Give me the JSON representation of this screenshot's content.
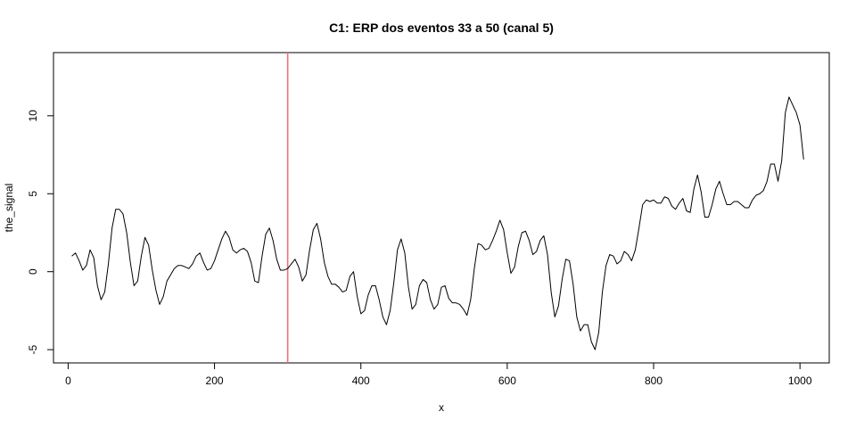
{
  "chart_data": {
    "type": "line",
    "title": "C1: ERP dos eventos 33 a 50 (canal 5)",
    "xlabel": "x",
    "ylabel": "the_signal",
    "xlim": [
      -20,
      1040
    ],
    "ylim": [
      -5.85,
      14.05
    ],
    "xticks": [
      0,
      200,
      400,
      600,
      800,
      1000
    ],
    "yticks": [
      -5,
      0,
      5,
      10
    ],
    "vline": {
      "x": 300,
      "color": "#e8737a"
    },
    "series": [
      {
        "color": "#000000",
        "points": [
          [
            5,
            1.0
          ],
          [
            10,
            1.2
          ],
          [
            15,
            0.7
          ],
          [
            20,
            0.1
          ],
          [
            25,
            0.4
          ],
          [
            30,
            1.4
          ],
          [
            35,
            0.9
          ],
          [
            40,
            -0.9
          ],
          [
            45,
            -1.8
          ],
          [
            50,
            -1.3
          ],
          [
            55,
            0.5
          ],
          [
            60,
            2.8
          ],
          [
            65,
            4.0
          ],
          [
            70,
            4.0
          ],
          [
            75,
            3.7
          ],
          [
            80,
            2.5
          ],
          [
            85,
            0.6
          ],
          [
            90,
            -0.9
          ],
          [
            95,
            -0.6
          ],
          [
            100,
            1.0
          ],
          [
            105,
            2.2
          ],
          [
            110,
            1.7
          ],
          [
            115,
            0.1
          ],
          [
            120,
            -1.2
          ],
          [
            125,
            -2.1
          ],
          [
            130,
            -1.6
          ],
          [
            135,
            -0.6
          ],
          [
            140,
            -0.2
          ],
          [
            145,
            0.2
          ],
          [
            150,
            0.4
          ],
          [
            155,
            0.4
          ],
          [
            160,
            0.3
          ],
          [
            165,
            0.2
          ],
          [
            170,
            0.5
          ],
          [
            175,
            1.0
          ],
          [
            180,
            1.2
          ],
          [
            185,
            0.6
          ],
          [
            190,
            0.1
          ],
          [
            195,
            0.2
          ],
          [
            200,
            0.7
          ],
          [
            205,
            1.4
          ],
          [
            210,
            2.1
          ],
          [
            215,
            2.6
          ],
          [
            220,
            2.2
          ],
          [
            225,
            1.4
          ],
          [
            230,
            1.2
          ],
          [
            235,
            1.4
          ],
          [
            240,
            1.5
          ],
          [
            245,
            1.3
          ],
          [
            250,
            0.6
          ],
          [
            255,
            -0.6
          ],
          [
            260,
            -0.7
          ],
          [
            265,
            1.0
          ],
          [
            270,
            2.4
          ],
          [
            275,
            2.8
          ],
          [
            280,
            2.0
          ],
          [
            285,
            0.8
          ],
          [
            290,
            0.1
          ],
          [
            295,
            0.1
          ],
          [
            300,
            0.2
          ],
          [
            305,
            0.5
          ],
          [
            310,
            0.8
          ],
          [
            315,
            0.3
          ],
          [
            320,
            -0.6
          ],
          [
            325,
            -0.2
          ],
          [
            330,
            1.4
          ],
          [
            335,
            2.7
          ],
          [
            340,
            3.1
          ],
          [
            345,
            2.1
          ],
          [
            350,
            0.6
          ],
          [
            355,
            -0.3
          ],
          [
            360,
            -0.8
          ],
          [
            365,
            -0.8
          ],
          [
            370,
            -1.0
          ],
          [
            375,
            -1.3
          ],
          [
            380,
            -1.2
          ],
          [
            385,
            -0.3
          ],
          [
            390,
            0.0
          ],
          [
            395,
            -1.6
          ],
          [
            400,
            -2.7
          ],
          [
            405,
            -2.5
          ],
          [
            410,
            -1.5
          ],
          [
            415,
            -0.9
          ],
          [
            420,
            -0.9
          ],
          [
            425,
            -1.8
          ],
          [
            430,
            -2.9
          ],
          [
            435,
            -3.4
          ],
          [
            440,
            -2.5
          ],
          [
            445,
            -0.7
          ],
          [
            450,
            1.4
          ],
          [
            455,
            2.1
          ],
          [
            460,
            1.2
          ],
          [
            465,
            -1.0
          ],
          [
            470,
            -2.4
          ],
          [
            475,
            -2.1
          ],
          [
            480,
            -0.9
          ],
          [
            485,
            -0.5
          ],
          [
            490,
            -0.7
          ],
          [
            495,
            -1.8
          ],
          [
            500,
            -2.4
          ],
          [
            505,
            -2.1
          ],
          [
            510,
            -1.0
          ],
          [
            515,
            -0.9
          ],
          [
            520,
            -1.7
          ],
          [
            525,
            -2.0
          ],
          [
            530,
            -2.0
          ],
          [
            535,
            -2.1
          ],
          [
            540,
            -2.4
          ],
          [
            545,
            -2.8
          ],
          [
            550,
            -1.8
          ],
          [
            555,
            0.2
          ],
          [
            560,
            1.8
          ],
          [
            565,
            1.7
          ],
          [
            570,
            1.4
          ],
          [
            575,
            1.5
          ],
          [
            580,
            2.0
          ],
          [
            585,
            2.6
          ],
          [
            590,
            3.3
          ],
          [
            595,
            2.7
          ],
          [
            600,
            1.2
          ],
          [
            605,
            -0.1
          ],
          [
            610,
            0.3
          ],
          [
            615,
            1.6
          ],
          [
            620,
            2.5
          ],
          [
            625,
            2.6
          ],
          [
            630,
            2.0
          ],
          [
            635,
            1.1
          ],
          [
            640,
            1.3
          ],
          [
            645,
            2.0
          ],
          [
            650,
            2.3
          ],
          [
            655,
            1.1
          ],
          [
            660,
            -1.3
          ],
          [
            665,
            -2.9
          ],
          [
            670,
            -2.2
          ],
          [
            675,
            -0.5
          ],
          [
            680,
            0.8
          ],
          [
            685,
            0.7
          ],
          [
            690,
            -0.8
          ],
          [
            695,
            -2.9
          ],
          [
            700,
            -3.8
          ],
          [
            705,
            -3.4
          ],
          [
            710,
            -3.4
          ],
          [
            715,
            -4.5
          ],
          [
            720,
            -5.0
          ],
          [
            725,
            -3.9
          ],
          [
            730,
            -1.3
          ],
          [
            735,
            0.4
          ],
          [
            740,
            1.1
          ],
          [
            745,
            1.0
          ],
          [
            750,
            0.5
          ],
          [
            755,
            0.7
          ],
          [
            760,
            1.3
          ],
          [
            765,
            1.1
          ],
          [
            770,
            0.7
          ],
          [
            775,
            1.4
          ],
          [
            780,
            2.8
          ],
          [
            785,
            4.3
          ],
          [
            790,
            4.6
          ],
          [
            795,
            4.5
          ],
          [
            800,
            4.6
          ],
          [
            805,
            4.4
          ],
          [
            810,
            4.4
          ],
          [
            815,
            4.8
          ],
          [
            820,
            4.7
          ],
          [
            825,
            4.2
          ],
          [
            830,
            4.0
          ],
          [
            835,
            4.4
          ],
          [
            840,
            4.7
          ],
          [
            845,
            3.9
          ],
          [
            850,
            3.8
          ],
          [
            855,
            5.3
          ],
          [
            860,
            6.2
          ],
          [
            865,
            5.1
          ],
          [
            870,
            3.5
          ],
          [
            875,
            3.5
          ],
          [
            880,
            4.3
          ],
          [
            885,
            5.3
          ],
          [
            890,
            5.8
          ],
          [
            895,
            5.0
          ],
          [
            900,
            4.3
          ],
          [
            905,
            4.3
          ],
          [
            910,
            4.5
          ],
          [
            915,
            4.5
          ],
          [
            920,
            4.3
          ],
          [
            925,
            4.1
          ],
          [
            930,
            4.1
          ],
          [
            935,
            4.6
          ],
          [
            940,
            4.9
          ],
          [
            945,
            5.0
          ],
          [
            950,
            5.2
          ],
          [
            955,
            5.8
          ],
          [
            960,
            6.9
          ],
          [
            965,
            6.9
          ],
          [
            970,
            5.8
          ],
          [
            975,
            7.1
          ],
          [
            980,
            10.2
          ],
          [
            985,
            11.2
          ],
          [
            990,
            10.7
          ],
          [
            995,
            10.2
          ],
          [
            1000,
            9.4
          ],
          [
            1005,
            7.2
          ]
        ]
      }
    ]
  }
}
